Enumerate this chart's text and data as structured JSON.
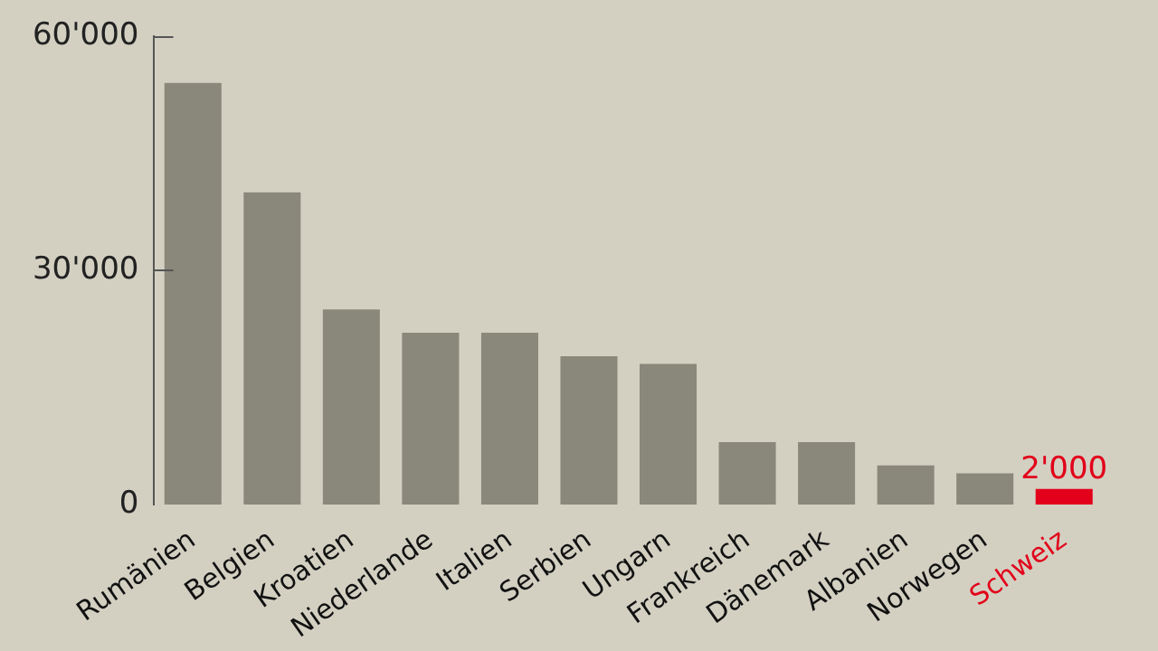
{
  "chart_data": {
    "type": "bar",
    "categories": [
      "Rumänien",
      "Belgien",
      "Kroatien",
      "Niederlande",
      "Italien",
      "Serbien",
      "Ungarn",
      "Frankreich",
      "Dänemark",
      "Albanien",
      "Norwegen",
      "Schweiz"
    ],
    "values": [
      54000,
      40000,
      25000,
      22000,
      22000,
      19000,
      18000,
      8000,
      8000,
      5000,
      4000,
      2000
    ],
    "colors": [
      "#8a877b",
      "#8a877b",
      "#8a877b",
      "#8a877b",
      "#8a877b",
      "#8a877b",
      "#8a877b",
      "#8a877b",
      "#8a877b",
      "#8a877b",
      "#8a877b",
      "#e2001a"
    ],
    "value_labels": [
      null,
      null,
      null,
      null,
      null,
      null,
      null,
      null,
      null,
      null,
      null,
      "2'000"
    ],
    "ylim": [
      0,
      60000
    ],
    "yticks": [
      0,
      {
        "value": 30000,
        "label": "30'000"
      },
      {
        "value": 60000,
        "label": "60'000"
      }
    ],
    "grid": false,
    "legend": false
  }
}
